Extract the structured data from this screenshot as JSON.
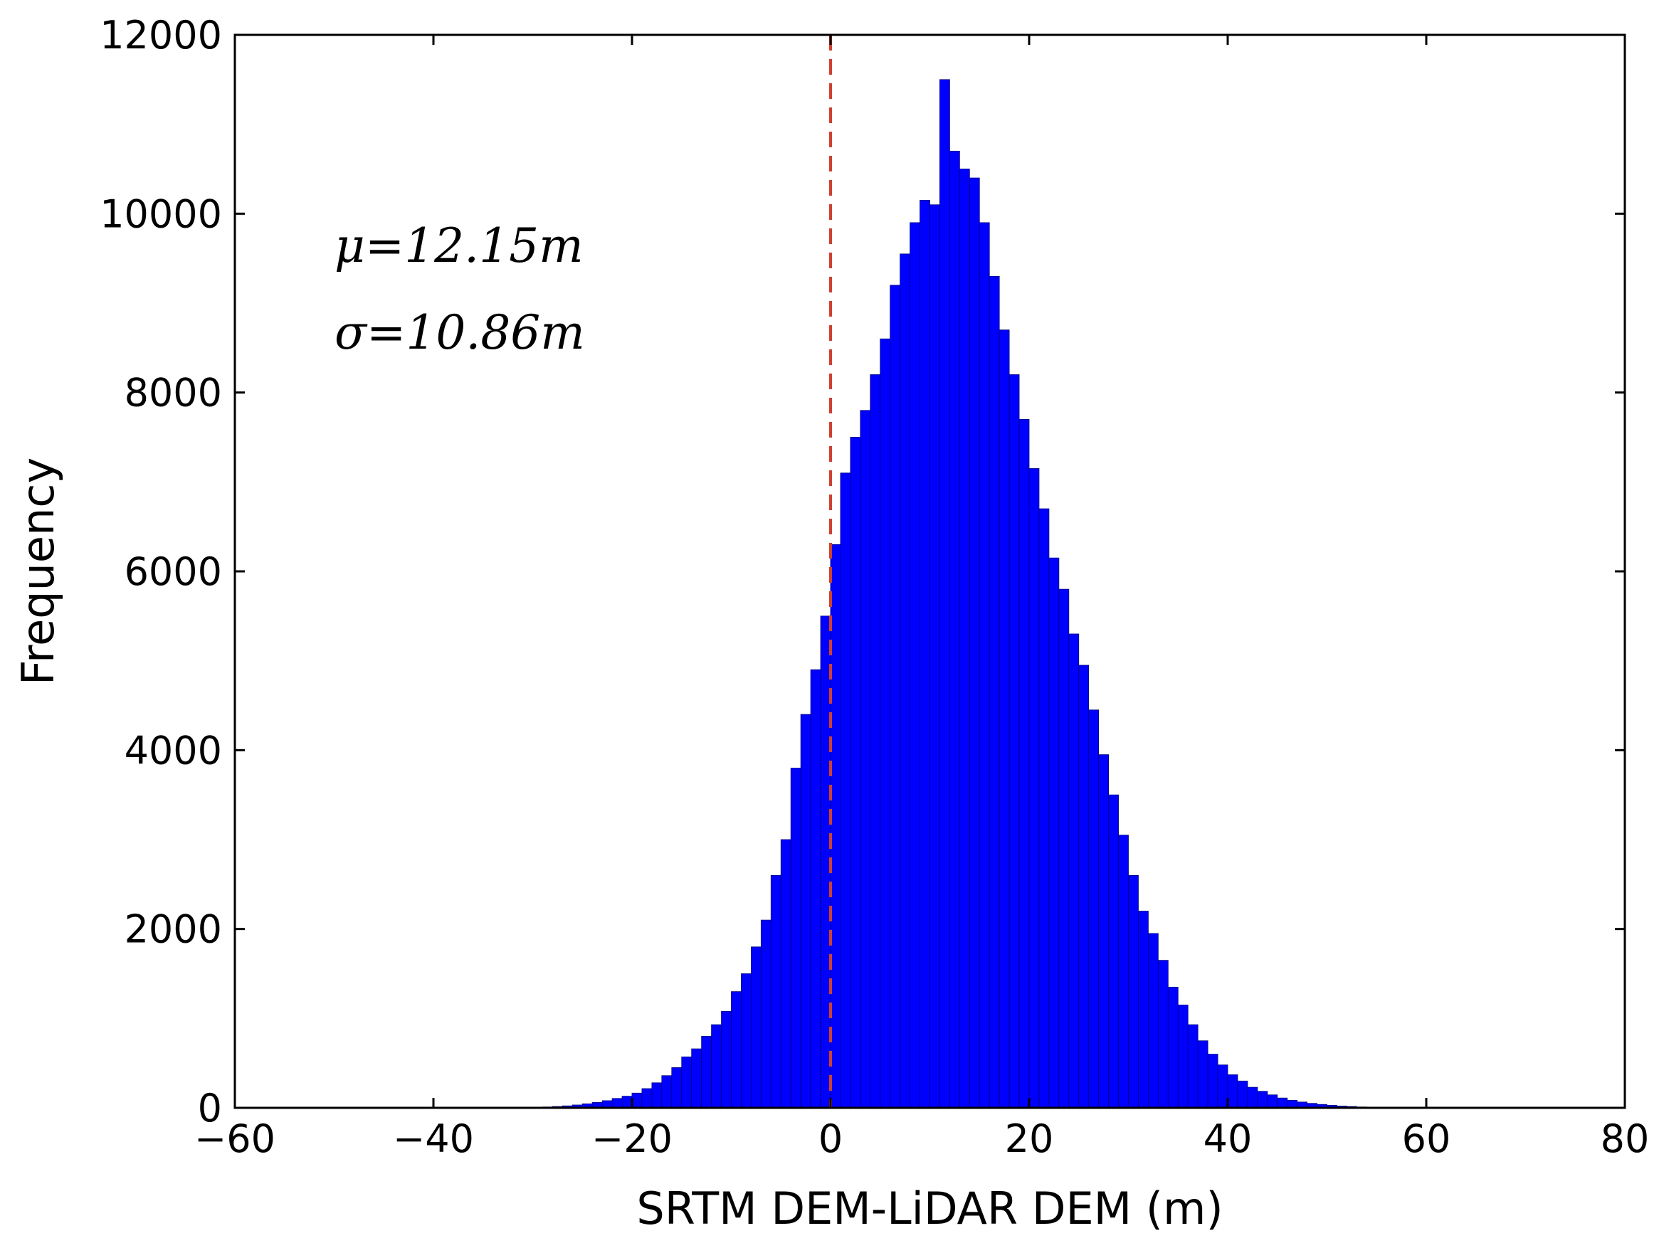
{
  "chart_data": {
    "type": "bar",
    "title": "",
    "xlabel": "SRTM DEM-LiDAR DEM (m)",
    "ylabel": "Frequency",
    "xlim": [
      -60,
      80
    ],
    "ylim": [
      0,
      12000
    ],
    "xticks": [
      -60,
      -40,
      -20,
      0,
      20,
      40,
      60,
      80
    ],
    "xtick_labels": [
      "−60",
      "−40",
      "−20",
      "0",
      "20",
      "40",
      "60",
      "80"
    ],
    "yticks": [
      0,
      2000,
      4000,
      6000,
      8000,
      10000,
      12000
    ],
    "ytick_labels": [
      "0",
      "2000",
      "4000",
      "6000",
      "8000",
      "10000",
      "12000"
    ],
    "grid": false,
    "bar_color": "#0000ff",
    "reference_line": {
      "x": 0,
      "color": "#d04030",
      "style": "dashed"
    },
    "annotations": [
      "μ=12.15m",
      "σ=10.86m"
    ],
    "bins": {
      "start": -30,
      "width": 1,
      "counts": [
        5,
        10,
        15,
        22,
        32,
        45,
        60,
        80,
        105,
        130,
        165,
        215,
        280,
        360,
        450,
        570,
        660,
        800,
        930,
        1080,
        1300,
        1500,
        1800,
        2100,
        2600,
        3000,
        3800,
        4400,
        4900,
        5500,
        6300,
        7100,
        7500,
        7800,
        8200,
        8600,
        9200,
        9550,
        9900,
        10150,
        10100,
        11500,
        10700,
        10500,
        10400,
        9900,
        9300,
        8700,
        8200,
        7700,
        7150,
        6700,
        6150,
        5800,
        5300,
        4950,
        4450,
        3950,
        3500,
        3050,
        2600,
        2200,
        1950,
        1650,
        1350,
        1150,
        930,
        750,
        600,
        480,
        370,
        300,
        230,
        185,
        145,
        110,
        85,
        65,
        50,
        38,
        28,
        20,
        15,
        10,
        7,
        5
      ]
    }
  }
}
